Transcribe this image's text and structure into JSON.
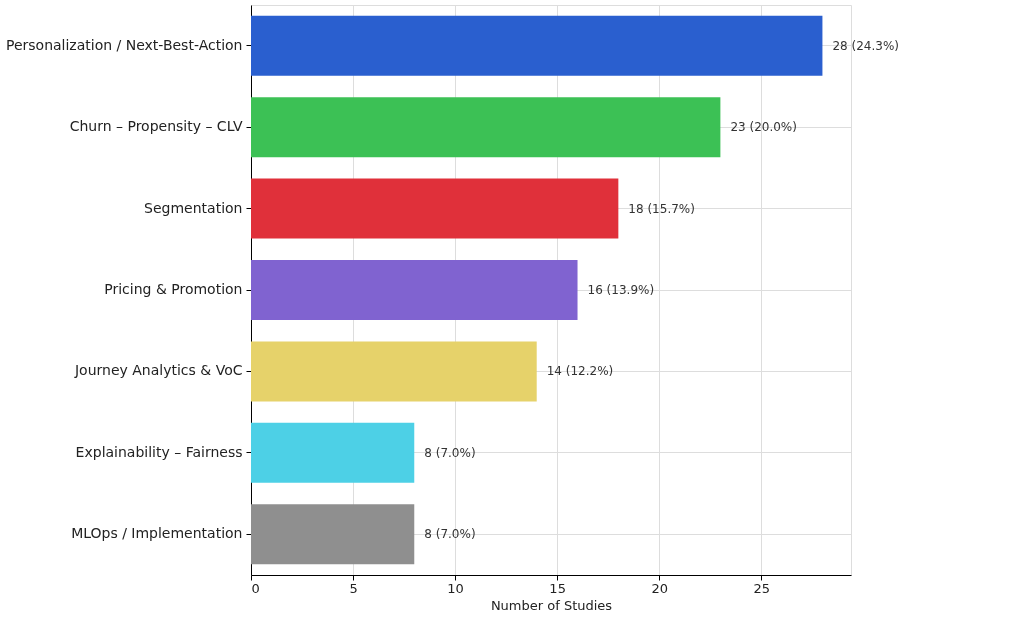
{
  "chart_data": {
    "type": "bar",
    "orientation": "horizontal",
    "xlabel": "Number of Studies",
    "categories": [
      "Personalization / Next-Best-Action",
      "Churn – Propensity – CLV",
      "Segmentation",
      "Pricing & Promotion",
      "Journey Analytics & VoC",
      "Explainability – Fairness",
      "MLOps / Implementation"
    ],
    "values": [
      28,
      23,
      18,
      16,
      14,
      8,
      8
    ],
    "colors": [
      "#2a5fcf",
      "#3cc155",
      "#e0303a",
      "#8063d0",
      "#e6d26a",
      "#4dd0e6",
      "#8f8f8f"
    ],
    "value_labels": [
      "28 (24.3%)",
      "23 (20.0%)",
      "18 (15.7%)",
      "16 (13.9%)",
      "14 (12.2%)",
      "8 (7.0%)",
      "8 (7.0%)"
    ],
    "xlim": [
      0,
      29.4
    ],
    "xticks": [
      0,
      5,
      10,
      15,
      20,
      25
    ],
    "grid": true
  }
}
